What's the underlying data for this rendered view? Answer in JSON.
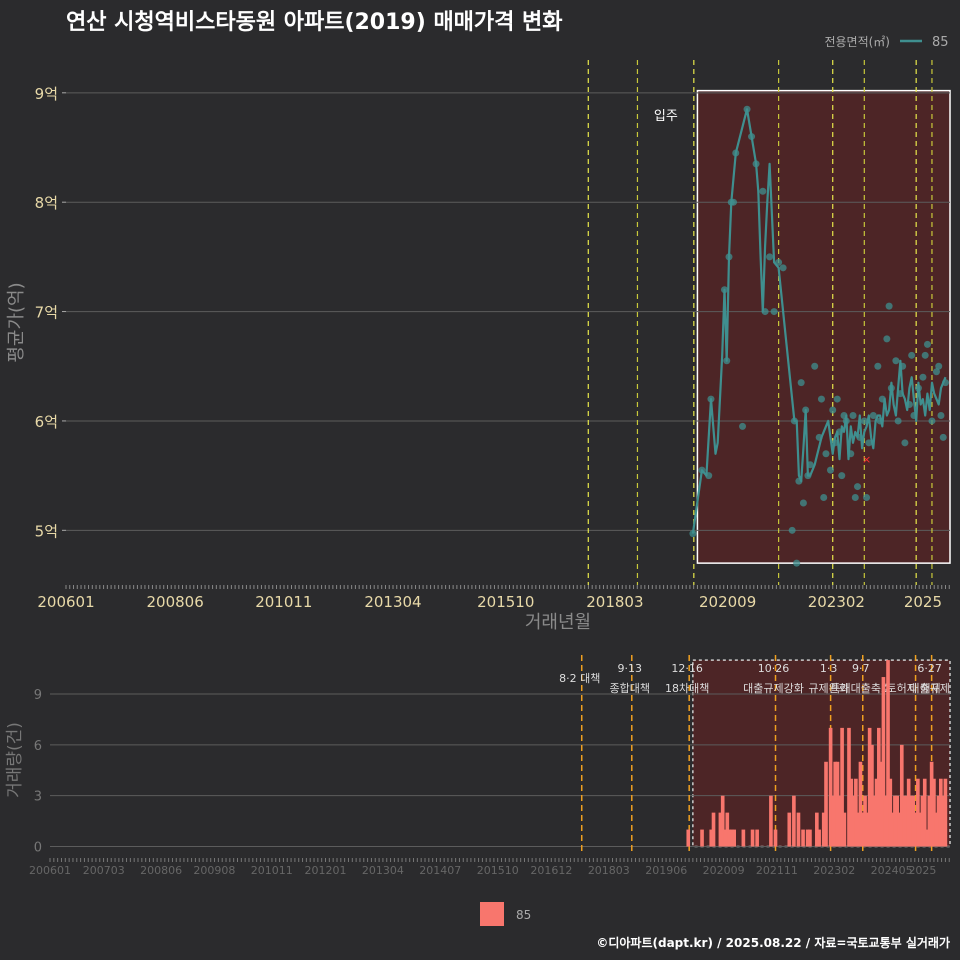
{
  "title": "연산 시청역비스타동원 아파트(2019) 매매가격 변화",
  "credit": "©디아파트(dapt.kr) / 2025.08.22 / 자료=국토교통부 실거래가",
  "colors": {
    "background": "#2b2b2d",
    "price_line": "#3f8f8f",
    "volume_bar": "#f8766d",
    "highlight": "#5a2424",
    "policy_line": "#f0a020",
    "policy_line_alt": "#e8e84a",
    "grid": "#5c5c5c",
    "axis_text": "#e8d9a8"
  },
  "chart_data": [
    {
      "id": "price",
      "type": "line",
      "title": "",
      "xlabel": "거래년월",
      "ylabel": "평균가(억)",
      "xlim": [
        2006.0,
        2025.6
      ],
      "ylim": [
        4.5,
        9.3
      ],
      "x_tick_labels": [
        "200601",
        "200806",
        "201011",
        "201304",
        "201510",
        "201803",
        "202009",
        "202302",
        "2025"
      ],
      "x_tick_values": [
        2006.0,
        2008.42,
        2010.83,
        2013.25,
        2015.75,
        2018.17,
        2020.67,
        2023.08,
        2025.0
      ],
      "y_tick_labels": [
        "5억",
        "6억",
        "7억",
        "8억",
        "9억"
      ],
      "y_tick_values": [
        5,
        6,
        7,
        8,
        9
      ],
      "legend_title": "전용면적(㎡)",
      "legend": [
        "85"
      ],
      "annotation": "입주",
      "annotation_x": 2019.3,
      "highlight": [
        2020.0,
        2025.6
      ],
      "highlight_ylim": [
        4.7,
        9.02
      ],
      "vlines": [
        2017.58,
        2018.67,
        2019.92,
        2021.8,
        2023.0,
        2023.7,
        2024.85,
        2025.2
      ],
      "series": [
        {
          "name": "85",
          "x": [
            2019.9,
            2020.1,
            2020.2,
            2020.3,
            2020.4,
            2020.45,
            2020.55,
            2020.6,
            2020.65,
            2020.7,
            2020.75,
            2020.85,
            2021.1,
            2021.2,
            2021.3,
            2021.35,
            2021.4,
            2021.45,
            2021.5,
            2021.55,
            2021.6,
            2021.7,
            2021.8,
            2022.15,
            2022.2,
            2022.25,
            2022.3,
            2022.35,
            2022.4,
            2022.45,
            2022.5,
            2022.6,
            2022.75,
            2022.9,
            2023.0,
            2023.05,
            2023.1,
            2023.15,
            2023.2,
            2023.25,
            2023.3,
            2023.35,
            2023.4,
            2023.45,
            2023.5,
            2023.55,
            2023.6,
            2023.65,
            2023.7,
            2023.75,
            2023.8,
            2023.85,
            2023.9,
            2023.95,
            2024.0,
            2024.05,
            2024.1,
            2024.15,
            2024.2,
            2024.25,
            2024.3,
            2024.35,
            2024.4,
            2024.45,
            2024.5,
            2024.55,
            2024.6,
            2024.65,
            2024.7,
            2024.75,
            2024.8,
            2024.85,
            2024.9,
            2024.95,
            2025.0,
            2025.05,
            2025.1,
            2025.15,
            2025.2,
            2025.25,
            2025.3,
            2025.35,
            2025.4,
            2025.5
          ],
          "y": [
            4.97,
            5.55,
            5.5,
            6.2,
            5.7,
            5.8,
            6.6,
            7.2,
            6.55,
            7.5,
            8.0,
            8.45,
            8.85,
            8.6,
            8.35,
            8.1,
            7.5,
            7.0,
            7.6,
            8.0,
            8.35,
            7.45,
            7.4,
            6.0,
            6.0,
            5.5,
            5.45,
            5.75,
            6.1,
            5.5,
            5.5,
            5.6,
            5.85,
            6.0,
            5.7,
            5.85,
            5.9,
            5.65,
            5.95,
            5.9,
            6.05,
            5.65,
            5.95,
            5.8,
            5.9,
            5.85,
            6.05,
            5.75,
            5.9,
            5.95,
            6.05,
            5.85,
            5.75,
            6.0,
            6.05,
            6.05,
            5.95,
            6.2,
            6.05,
            6.1,
            6.35,
            6.15,
            6.05,
            6.3,
            6.55,
            6.25,
            6.2,
            6.1,
            6.3,
            6.4,
            6.2,
            6.0,
            6.35,
            6.15,
            6.2,
            6.05,
            6.25,
            6.1,
            6.35,
            6.25,
            6.2,
            6.15,
            6.3,
            6.4
          ]
        }
      ],
      "scatter_x": [
        2019.9,
        2020.1,
        2020.25,
        2020.3,
        2020.6,
        2020.65,
        2020.7,
        2020.75,
        2020.8,
        2020.85,
        2021.0,
        2021.1,
        2021.2,
        2021.3,
        2021.45,
        2021.5,
        2021.6,
        2021.7,
        2021.8,
        2021.9,
        2022.1,
        2022.15,
        2022.2,
        2022.25,
        2022.3,
        2022.35,
        2022.4,
        2022.45,
        2022.5,
        2022.6,
        2022.7,
        2022.75,
        2022.8,
        2022.85,
        2022.95,
        2023.0,
        2023.05,
        2023.1,
        2023.15,
        2023.2,
        2023.25,
        2023.3,
        2023.4,
        2023.45,
        2023.5,
        2023.55,
        2023.6,
        2023.7,
        2023.75,
        2023.8,
        2023.9,
        2024.0,
        2024.05,
        2024.1,
        2024.2,
        2024.25,
        2024.3,
        2024.4,
        2024.45,
        2024.5,
        2024.55,
        2024.6,
        2024.7,
        2024.75,
        2024.8,
        2024.9,
        2025.0,
        2025.05,
        2025.1,
        2025.2,
        2025.3,
        2025.35,
        2025.4,
        2025.45,
        2025.5
      ],
      "scatter_y": [
        4.97,
        5.55,
        5.5,
        6.2,
        7.2,
        6.55,
        7.5,
        8.0,
        8.0,
        8.45,
        5.95,
        8.85,
        8.6,
        8.35,
        8.1,
        7.0,
        7.5,
        7.0,
        7.45,
        7.4,
        5.0,
        6.0,
        4.7,
        5.45,
        6.35,
        5.25,
        6.1,
        5.5,
        5.6,
        6.5,
        5.85,
        6.2,
        5.3,
        5.7,
        5.55,
        6.1,
        5.8,
        6.2,
        5.9,
        5.5,
        6.05,
        6.0,
        5.7,
        6.05,
        5.3,
        5.4,
        5.85,
        6.0,
        5.3,
        5.8,
        6.05,
        6.5,
        6.0,
        6.2,
        6.75,
        7.05,
        6.3,
        6.55,
        6.0,
        6.25,
        6.5,
        5.8,
        6.15,
        6.6,
        6.05,
        6.3,
        6.4,
        6.6,
        6.7,
        6.0,
        6.45,
        6.5,
        6.05,
        5.85,
        6.35
      ],
      "marker_x": 2023.75,
      "marker_y": 5.65
    },
    {
      "id": "volume",
      "type": "bar",
      "title": "",
      "xlabel": "",
      "ylabel": "거래량(건)",
      "xlim": [
        2006.0,
        2025.6
      ],
      "ylim": [
        -0.5,
        11.3
      ],
      "x_tick_labels": [
        "200601",
        "200703",
        "200806",
        "200908",
        "201011",
        "201201",
        "201304",
        "201407",
        "201510",
        "201612",
        "201803",
        "201906",
        "202009",
        "202111",
        "202302",
        "202405",
        "2025"
      ],
      "x_tick_values": [
        2006.0,
        2007.17,
        2008.42,
        2009.58,
        2010.83,
        2012.0,
        2013.25,
        2014.5,
        2015.75,
        2016.92,
        2018.17,
        2019.42,
        2020.67,
        2021.83,
        2023.08,
        2024.33,
        2025.0
      ],
      "y_tick_labels": [
        "0",
        "3",
        "6",
        "9"
      ],
      "y_tick_values": [
        0,
        3,
        6,
        9
      ],
      "legend": [
        "85"
      ],
      "highlight": [
        2020.0,
        2025.6
      ],
      "highlight_ylim": [
        0,
        11.0
      ],
      "policies": [
        {
          "x": 2017.58,
          "line1": "8·2 대책",
          "line2": ""
        },
        {
          "x": 2018.67,
          "line1": "9·13",
          "line2": "종합대책"
        },
        {
          "x": 2019.92,
          "line1": "12·16",
          "line2": "18차대책"
        },
        {
          "x": 2021.8,
          "line1": "10·26",
          "line2": "대출규제강화"
        },
        {
          "x": 2023.0,
          "line1": "1·3",
          "line2": "규제완화"
        },
        {
          "x": 2023.7,
          "line1": "9·7",
          "line2": "특례대출축소"
        },
        {
          "x": 2024.85,
          "line1": "",
          "line2": "토허제 해제"
        },
        {
          "x": 2025.2,
          "line1": "6·27",
          "line2": "대출규제"
        }
      ],
      "x": [
        2019.9,
        2020.2,
        2020.4,
        2020.45,
        2020.6,
        2020.65,
        2020.7,
        2020.75,
        2020.8,
        2020.85,
        2020.9,
        2021.1,
        2021.3,
        2021.4,
        2021.7,
        2021.8,
        2022.1,
        2022.2,
        2022.3,
        2022.4,
        2022.5,
        2022.55,
        2022.7,
        2022.75,
        2022.85,
        2022.9,
        2023.0,
        2023.05,
        2023.1,
        2023.15,
        2023.2,
        2023.25,
        2023.3,
        2023.4,
        2023.45,
        2023.5,
        2023.55,
        2023.6,
        2023.65,
        2023.7,
        2023.75,
        2023.8,
        2023.85,
        2023.9,
        2023.95,
        2024.0,
        2024.05,
        2024.1,
        2024.15,
        2024.2,
        2024.25,
        2024.3,
        2024.35,
        2024.4,
        2024.45,
        2024.5,
        2024.55,
        2024.6,
        2024.65,
        2024.7,
        2024.75,
        2024.8,
        2024.85,
        2024.9,
        2024.95,
        2025.0,
        2025.05,
        2025.1,
        2025.15,
        2025.2,
        2025.25,
        2025.3,
        2025.35,
        2025.4,
        2025.45,
        2025.5
      ],
      "values": [
        1,
        1,
        1,
        2,
        2,
        3,
        1,
        2,
        1,
        1,
        1,
        1,
        1,
        1,
        3,
        1,
        2,
        3,
        2,
        1,
        1,
        1,
        2,
        1,
        2,
        5,
        7,
        3,
        5,
        5,
        3,
        7,
        2,
        7,
        4,
        3,
        4,
        2,
        5,
        2,
        3,
        2,
        7,
        6,
        3,
        4,
        7,
        5,
        10,
        3,
        11,
        4,
        2,
        3,
        3,
        2,
        6,
        3,
        3,
        4,
        3,
        3,
        2,
        4,
        2,
        3,
        4,
        1,
        3,
        5,
        4,
        2,
        3,
        4,
        3,
        4
      ]
    }
  ]
}
